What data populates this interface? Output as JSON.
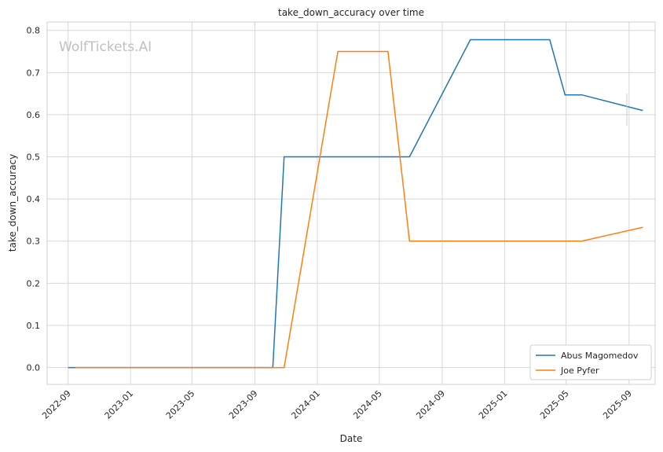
{
  "chart_data": {
    "type": "line",
    "title": "take_down_accuracy over time",
    "xlabel": "Date",
    "ylabel": "take_down_accuracy",
    "watermark": "WolfTickets.AI",
    "x_ticks": [
      "2022-09",
      "2023-01",
      "2023-05",
      "2023-09",
      "2024-01",
      "2024-05",
      "2024-09",
      "2025-01",
      "2025-05",
      "2025-09"
    ],
    "y_ticks": [
      "0.0",
      "0.1",
      "0.2",
      "0.3",
      "0.4",
      "0.5",
      "0.6",
      "0.7",
      "0.8"
    ],
    "xlim": [
      "2022-07-22",
      "2025-10-22"
    ],
    "ylim": [
      -0.04,
      0.82
    ],
    "grid": true,
    "legend_position": "bottom-right",
    "series": [
      {
        "name": "Abus Magomedov",
        "color": "#1f77b4",
        "x": [
          "2022-09-01",
          "2023-10-06",
          "2023-10-28",
          "2024-06-29",
          "2024-10-26",
          "2025-03-30",
          "2025-04-29",
          "2025-06-01",
          "2025-09-28"
        ],
        "y": [
          0.0,
          0.0,
          0.5,
          0.5,
          0.778,
          0.778,
          0.647,
          0.647,
          0.61
        ]
      },
      {
        "name": "Joe Pyfer",
        "color": "#ff7f0e",
        "x": [
          "2022-09-15",
          "2023-10-28",
          "2024-02-10",
          "2024-05-18",
          "2024-06-29",
          "2025-06-01",
          "2025-09-28"
        ],
        "y": [
          0.0,
          0.0,
          0.75,
          0.75,
          0.3,
          0.3,
          0.333
        ]
      }
    ]
  }
}
